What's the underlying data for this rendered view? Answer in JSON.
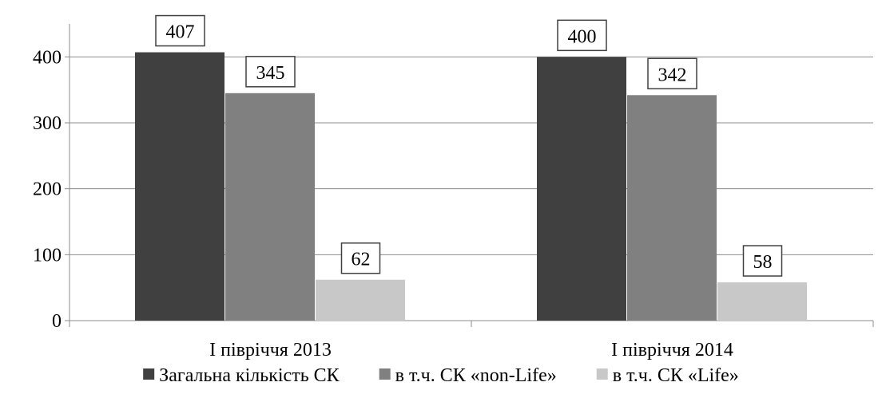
{
  "chart_data": {
    "type": "bar",
    "title": "",
    "xlabel": "",
    "ylabel": "",
    "categories": [
      "I півріччя 2013",
      "I півріччя 2014"
    ],
    "series": [
      {
        "name": "Загальна кількість  СК",
        "values": [
          407,
          400
        ],
        "color": "#404040"
      },
      {
        "name": "в т.ч. СК «non-Life»",
        "values": [
          345,
          342
        ],
        "color": "#808080"
      },
      {
        "name": "в т.ч. СК «Life»",
        "values": [
          62,
          58
        ],
        "color": "#c8c8c8"
      }
    ],
    "ylim": [
      0,
      450
    ],
    "yticks": [
      0,
      100,
      200,
      300,
      400
    ],
    "grid": true,
    "legend_position": "bottom",
    "data_labels": true
  }
}
